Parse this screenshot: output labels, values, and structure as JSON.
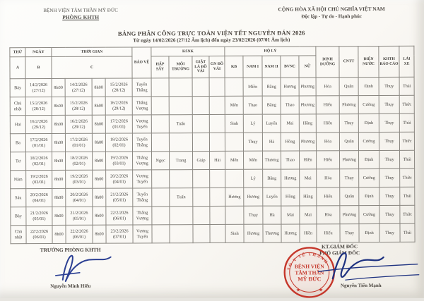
{
  "colors": {
    "signature_blue": "#2b3f93",
    "stamp_red": "#c5372b",
    "paper": "#faf8f4",
    "ink": "#3c3a37"
  },
  "header": {
    "org_line1": "BỆNH VIỆN TÂM THẦN MỸ ĐỨC",
    "org_line2": "PHÒNG KHTH",
    "national_line1": "CỘNG HÒA XÃ HỘI CHỦ NGHĨA VIỆT NAM",
    "national_line2": "Độc lập - Tự do - Hạnh phúc",
    "title": "BẢNG PHÂN CÔNG TRỰC TOÀN VIỆN TẾT NGUYÊN ĐÁN 2026",
    "subtitle": "Từ ngày 14/02/2026 (27/12 Âm lịch) đến ngày 23/02/2026 (07/01 Âm lịch)"
  },
  "table": {
    "head": {
      "thu": "THỨ",
      "ngay": "NGÀY",
      "thoi_gian": "THỜI GIAN",
      "bao_ve": "BẢO VỆ",
      "ksnk": "KSNK",
      "ho_ly": "HỘ LÝ",
      "dinh_duong": "DINH DƯỠNG",
      "cntt": "CNTT",
      "dien_nuoc": "ĐIỆN NƯỚC",
      "khth_bao_cao": "KHTH BÁO CÁO",
      "lai_xe": "LÁI XE",
      "a": "A",
      "b": "B",
      "c": "C",
      "hap_say": "HẤP SẤY",
      "moi_truong": "MÔI TRƯỜNG",
      "giat_la_do_vai": "GIẶT LÀ ĐỒ VẢI",
      "gn_do_vai": "GN ĐỒ VẢI",
      "kb": "KB",
      "nam_1": "NAM I",
      "nam_2": "NAM II",
      "bvnc": "BVNC",
      "nu": "NỮ"
    },
    "rows": [
      [
        "Bảy",
        "14/2/2026\n(27/12)",
        "8h00",
        "14/2/2026\n(27/12)",
        "8h00",
        "15/2/2026\n(28/12)",
        "Tuyến\nThắng",
        "",
        "",
        "",
        "",
        "",
        "Miền",
        "Bằng",
        "Hương",
        "Phương",
        "Hòa",
        "Quân",
        "Định",
        "Thụy",
        "Thái"
      ],
      [
        "Chủ\nnhật",
        "15/2/2026\n(28/12)",
        "8h00",
        "15/2/2026\n(28/12)",
        "8h00",
        "16/2/2026\n(29/12)",
        "Thắng\nVượng",
        "",
        "",
        "",
        "",
        "Mến",
        "Thạo",
        "Bằng",
        "Thao",
        "Phương",
        "Hiếu",
        "Phương",
        "Cường",
        "Thụy",
        "Thức"
      ],
      [
        "Hai",
        "16/2/2026\n(29/12)",
        "8h00",
        "16/2/2026\n(29/12)",
        "8h00",
        "17/2/2026\n(01/01)",
        "Vượng\nTuyến",
        "",
        "Tuấn",
        "",
        "",
        "Sinh",
        "Lý",
        "Luyến",
        "Mai",
        "Hằng",
        "Hiếu",
        "Thụy",
        "Định",
        "Thụy",
        "Thái"
      ],
      [
        "Ba",
        "17/2/2026\n(01/01)",
        "8h00",
        "17/2/2026\n(01/01)",
        "8h00",
        "18/2/2026\n(02/01)",
        "Tuyến\nThắng",
        "",
        "",
        "",
        "",
        "",
        "Thụy",
        "Hà",
        "Hồng",
        "Phương",
        "Hòa",
        "Quân",
        "Cường",
        "Thụy",
        "Thức"
      ],
      [
        "Tư",
        "18/2/2026\n(02/01)",
        "8h00",
        "18/2/2026\n(02/01)",
        "8h00",
        "19/2/2026\n(03/01)",
        "Thắng\nVượng",
        "Ngọc",
        "Trang",
        "Giáp",
        "Hải",
        "Mến",
        "Mến",
        "Thương",
        "Thao",
        "Hiền",
        "Hiếu",
        "Phương",
        "Định",
        "Thụy",
        "Thái"
      ],
      [
        "Năm",
        "19/2/2026\n(03/01)",
        "8h00",
        "19/2/2026\n(03/01)",
        "8h00",
        "20/2/2026\n(04/01)",
        "Vượng\nTuyến",
        "",
        "",
        "",
        "",
        "",
        "Lý",
        "Bằng",
        "Hương",
        "Mai",
        "Hòa",
        "Thụy",
        "Cường",
        "Thụy",
        "Thức"
      ],
      [
        "Sáu",
        "20/2/2026\n(04/01)",
        "8h00",
        "20/2/2026\n(04/01)",
        "8h00",
        "21/2/2026\n(05/01)",
        "Tuyến\nThắng",
        "",
        "Tuấn",
        "",
        "",
        "Hương",
        "Hương",
        "Luyến",
        "Hồng",
        "Hằng",
        "Hiếu",
        "Quân",
        "Định",
        "Thụy",
        "Thái"
      ],
      [
        "Bảy",
        "21/2/2026\n(05/01)",
        "8h00",
        "21/2/2026\n(05/01)",
        "8h00",
        "22/2/2026\n(06/01)",
        "Thắng\nVượng",
        "",
        "",
        "",
        "",
        "",
        "Thụy",
        "Hà",
        "Mai",
        "Mai",
        "Hòa",
        "Phương",
        "Cường",
        "Thụy",
        "Thức"
      ],
      [
        "Chủ\nnhật",
        "22/2/2026\n(06/01)",
        "8h00",
        "22/2/2026\n(06/01)",
        "8h00",
        "23/2/2026\n(07/01)",
        "Vượng\nTuyến",
        "",
        "",
        "",
        "",
        "Sinh",
        "Hương",
        "Thương",
        "Hương",
        "Hiền",
        "Hiếu",
        "Thụy",
        "Định",
        "Thụy",
        "Thái"
      ]
    ]
  },
  "footer": {
    "left_title": "TRƯỞNG PHÒNG KHTH",
    "left_name": "Nguyễn Minh Hiếu",
    "right_title_1": "KT.GIÁM ĐỐC",
    "right_title_2": "PHÓ GIÁM ĐỐC",
    "right_name": "Nguyễn Tiến Mạnh",
    "stamp": {
      "rim_top": "SỞ Y TẾ THÀNH",
      "center_line1": "BỆNH VIỆN",
      "center_line2": "TÂM THẦN",
      "center_line3": "MỸ ĐỨC"
    }
  }
}
